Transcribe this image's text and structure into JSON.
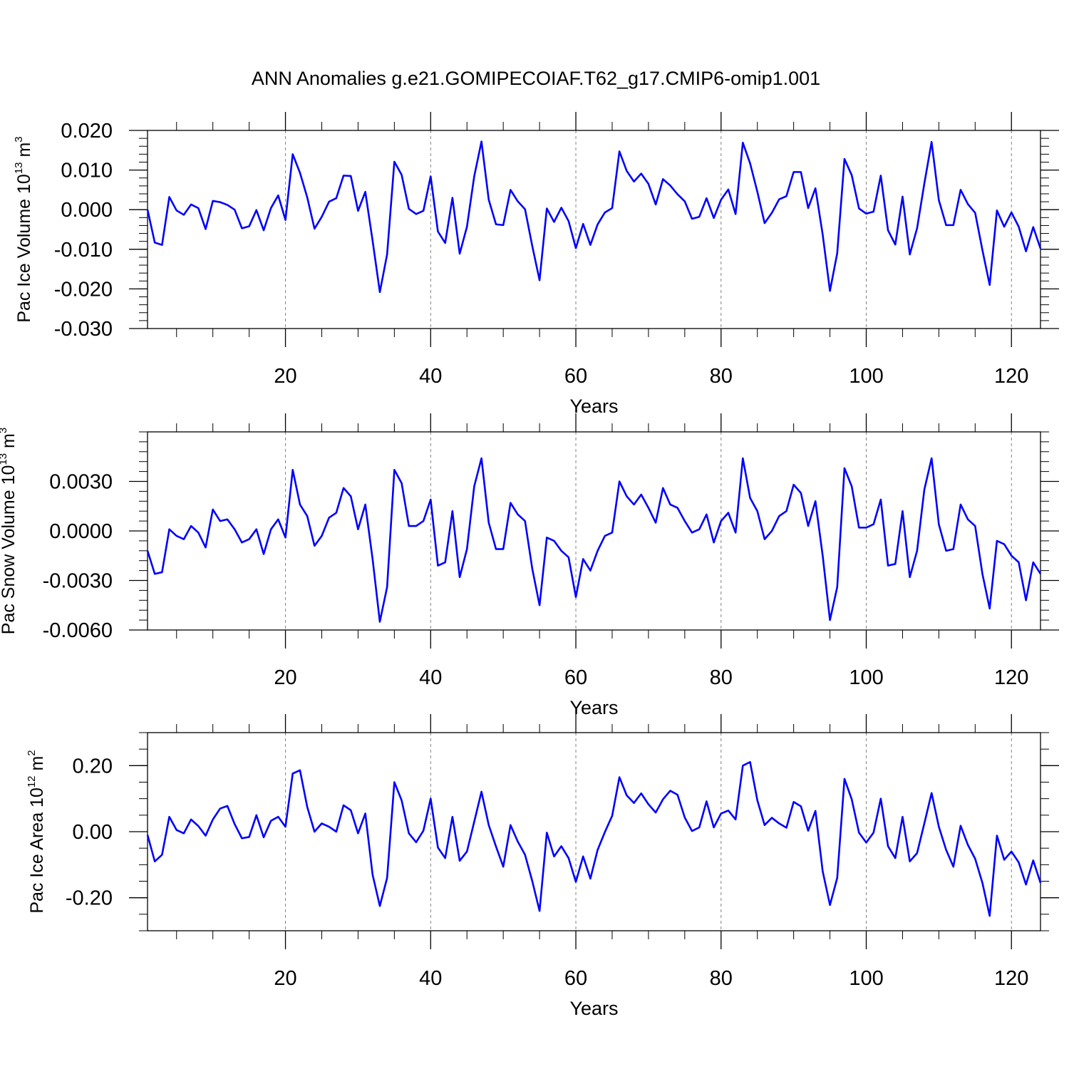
{
  "title": "ANN Anomalies g.e21.GOMIPECOIAF.T62_g17.CMIP6-omip1.001",
  "colors": {
    "series": "#0000ff",
    "axis": "#000000",
    "grid": "#808080"
  },
  "chart_data": [
    {
      "type": "line",
      "ylabel": {
        "prefix": "Pac Ice Volume 10",
        "exponent": "13",
        "unit": " m",
        "unit_exponent": "3"
      },
      "xlabel": "Years",
      "xlim": [
        1,
        124
      ],
      "ylim": [
        -0.03,
        0.02
      ],
      "yticks": [
        -0.03,
        -0.02,
        -0.01,
        0.0,
        0.01,
        0.02
      ],
      "ytick_labels": [
        "-0.030",
        "-0.020",
        "-0.010",
        "0.000",
        "0.010",
        "0.020"
      ],
      "yminor_step": 0.002,
      "xticks": [
        20,
        40,
        60,
        80,
        100,
        120
      ],
      "xtick_labels": [
        "20",
        "40",
        "60",
        "80",
        "100",
        "120"
      ],
      "series": [
        {
          "name": "Pac Ice Volume",
          "x_start": 1,
          "values": [
            0.0,
            -0.0083,
            -0.0089,
            0.0032,
            -0.0002,
            -0.0013,
            0.0013,
            0.0004,
            -0.0049,
            0.0022,
            0.0019,
            0.0012,
            0.0,
            -0.0047,
            -0.0042,
            -0.0001,
            -0.0052,
            0.0004,
            0.0036,
            -0.0026,
            0.014,
            0.0093,
            0.0031,
            -0.0048,
            -0.0018,
            0.002,
            0.0029,
            0.0086,
            0.0085,
            -0.0003,
            0.0045,
            -0.0078,
            -0.0208,
            -0.0113,
            0.0121,
            0.0088,
            0.0002,
            -0.0011,
            -0.0003,
            0.0084,
            -0.0055,
            -0.0084,
            0.003,
            -0.0111,
            -0.0043,
            0.0084,
            0.0172,
            0.0025,
            -0.0037,
            -0.0039,
            0.005,
            0.0021,
            0.0001,
            -0.0092,
            -0.0178,
            0.0003,
            -0.0031,
            0.0005,
            -0.0029,
            -0.0097,
            -0.0036,
            -0.0089,
            -0.0037,
            -0.0007,
            0.0004,
            0.0147,
            0.0098,
            0.0071,
            0.0091,
            0.0065,
            0.0013,
            0.0077,
            0.0061,
            0.0039,
            0.0021,
            -0.0023,
            -0.0018,
            0.0029,
            -0.0021,
            0.0025,
            0.0051,
            -0.0011,
            0.0169,
            0.0117,
            0.0045,
            -0.0034,
            -0.0008,
            0.0026,
            0.0034,
            0.0095,
            0.0095,
            0.0004,
            0.0054,
            -0.0063,
            -0.0205,
            -0.011,
            0.0128,
            0.0087,
            0.0003,
            -0.001,
            -0.0005,
            0.0086,
            -0.0052,
            -0.0088,
            0.0033,
            -0.0113,
            -0.0047,
            0.0066,
            0.0171,
            0.0024,
            -0.0039,
            -0.0039,
            0.005,
            0.0014,
            -0.0008,
            -0.0102,
            -0.019,
            -0.0002,
            -0.0043,
            -0.0007,
            -0.0043,
            -0.0105,
            -0.0044,
            -0.0098
          ]
        }
      ]
    },
    {
      "type": "line",
      "ylabel": {
        "prefix": "Pac Snow Volume 10",
        "exponent": "13",
        "unit": " m",
        "unit_exponent": "3"
      },
      "xlabel": "Years",
      "xlim": [
        1,
        124
      ],
      "ylim": [
        -0.006,
        0.006
      ],
      "yticks": [
        -0.006,
        -0.003,
        0.0,
        0.003
      ],
      "ytick_labels": [
        "-0.0060",
        "-0.0030",
        "0.0000",
        "0.0030"
      ],
      "yminor_step": 0.0006,
      "xticks": [
        20,
        40,
        60,
        80,
        100,
        120
      ],
      "xtick_labels": [
        "20",
        "40",
        "60",
        "80",
        "100",
        "120"
      ],
      "series": [
        {
          "name": "Pac Snow Volume",
          "x_start": 1,
          "values": [
            -0.0012,
            -0.0026,
            -0.0025,
            0.0001,
            -0.0003,
            -0.0005,
            0.0003,
            -0.0001,
            -0.001,
            0.0013,
            0.0006,
            0.0007,
            0.0001,
            -0.0007,
            -0.0005,
            0.0001,
            -0.0014,
            0.0001,
            0.0007,
            -0.0004,
            0.0037,
            0.0016,
            0.0009,
            -0.0009,
            -0.0003,
            0.0008,
            0.0011,
            0.0026,
            0.0021,
            0.0001,
            0.0016,
            -0.0017,
            -0.0055,
            -0.0034,
            0.0037,
            0.0029,
            0.0003,
            0.0003,
            0.0006,
            0.0019,
            -0.0021,
            -0.0019,
            0.0012,
            -0.0028,
            -0.0011,
            0.0027,
            0.0044,
            0.0005,
            -0.0011,
            -0.0011,
            0.0017,
            0.001,
            0.0006,
            -0.0023,
            -0.0045,
            -0.0004,
            -0.0006,
            -0.0012,
            -0.0016,
            -0.004,
            -0.0017,
            -0.0024,
            -0.0012,
            -0.0003,
            -0.0001,
            0.003,
            0.0021,
            0.0016,
            0.0022,
            0.0014,
            0.0005,
            0.0026,
            0.0016,
            0.0014,
            0.0006,
            -0.0001,
            0.0001,
            0.001,
            -0.0007,
            0.0006,
            0.0011,
            -0.0001,
            0.0044,
            0.002,
            0.0012,
            -0.0005,
            0.0,
            0.0009,
            0.0012,
            0.0028,
            0.0023,
            0.0003,
            0.0018,
            -0.0015,
            -0.0054,
            -0.0034,
            0.0038,
            0.0027,
            0.0002,
            0.0002,
            0.0004,
            0.0019,
            -0.0021,
            -0.002,
            0.0012,
            -0.0028,
            -0.0012,
            0.0025,
            0.0044,
            0.0004,
            -0.0012,
            -0.0011,
            0.0016,
            0.0007,
            0.0003,
            -0.0026,
            -0.0047,
            -0.0006,
            -0.0008,
            -0.0015,
            -0.0019,
            -0.0042,
            -0.0019,
            -0.0026
          ]
        }
      ]
    },
    {
      "type": "line",
      "ylabel": {
        "prefix": "Pac Ice Area 10",
        "exponent": "12",
        "unit": " m",
        "unit_exponent": "2"
      },
      "xlabel": "Years",
      "xlim": [
        1,
        124
      ],
      "ylim": [
        -0.3,
        0.3
      ],
      "yticks": [
        -0.2,
        0.0,
        0.2
      ],
      "ytick_labels": [
        "-0.20",
        "0.00",
        "0.20"
      ],
      "yminor_step": 0.05,
      "xticks": [
        20,
        40,
        60,
        80,
        100,
        120
      ],
      "xtick_labels": [
        "20",
        "40",
        "60",
        "80",
        "100",
        "120"
      ],
      "series": [
        {
          "name": "Pac Ice Area",
          "x_start": 1,
          "values": [
            -0.01,
            -0.09,
            -0.07,
            0.045,
            0.005,
            -0.005,
            0.037,
            0.017,
            -0.012,
            0.037,
            0.07,
            0.078,
            0.023,
            -0.02,
            -0.016,
            0.05,
            -0.017,
            0.033,
            0.045,
            0.015,
            0.176,
            0.186,
            0.075,
            0.0,
            0.025,
            0.015,
            0.0,
            0.08,
            0.065,
            -0.005,
            0.055,
            -0.13,
            -0.225,
            -0.14,
            0.15,
            0.095,
            -0.005,
            -0.032,
            0.003,
            0.1,
            -0.048,
            -0.08,
            0.045,
            -0.088,
            -0.06,
            0.03,
            0.121,
            0.02,
            -0.045,
            -0.106,
            0.02,
            -0.03,
            -0.07,
            -0.15,
            -0.24,
            -0.003,
            -0.075,
            -0.044,
            -0.08,
            -0.152,
            -0.075,
            -0.142,
            -0.055,
            -0.001,
            0.048,
            0.165,
            0.11,
            0.087,
            0.116,
            0.083,
            0.058,
            0.098,
            0.124,
            0.112,
            0.043,
            0.002,
            0.013,
            0.092,
            0.013,
            0.055,
            0.064,
            0.037,
            0.2,
            0.211,
            0.095,
            0.02,
            0.042,
            0.025,
            0.012,
            0.09,
            0.077,
            0.003,
            0.063,
            -0.12,
            -0.222,
            -0.14,
            0.16,
            0.098,
            -0.003,
            -0.033,
            -0.003,
            0.1,
            -0.044,
            -0.08,
            0.045,
            -0.09,
            -0.065,
            0.025,
            0.117,
            0.015,
            -0.055,
            -0.106,
            0.018,
            -0.04,
            -0.082,
            -0.155,
            -0.255,
            -0.012,
            -0.085,
            -0.06,
            -0.093,
            -0.16,
            -0.087,
            -0.155
          ]
        }
      ]
    }
  ]
}
